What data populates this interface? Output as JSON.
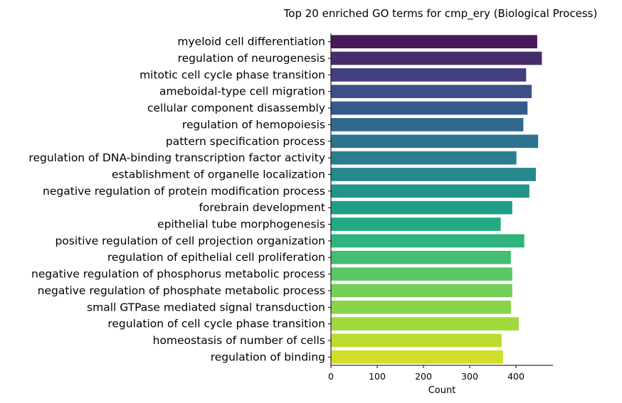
{
  "chart_data": {
    "type": "bar",
    "orientation": "horizontal",
    "title": "Top 20 enriched GO terms for cmp_ery (Biological Process)",
    "xlabel": "Count",
    "ylabel": "",
    "xlim": [
      0,
      480
    ],
    "xticks": [
      0,
      100,
      200,
      300,
      400
    ],
    "grid": false,
    "categories": [
      "myeloid cell differentiation",
      "regulation of neurogenesis",
      "mitotic cell cycle phase transition",
      "ameboidal-type cell migration",
      "cellular component disassembly",
      "regulation of hemopoiesis",
      "pattern specification process",
      "regulation of DNA-binding transcription factor activity",
      "establishment of organelle localization",
      "negative regulation of protein modification process",
      "forebrain development",
      "epithelial tube morphogenesis",
      "positive regulation of cell projection organization",
      "regulation of epithelial cell proliferation",
      "negative regulation of phosphorus metabolic process",
      "negative regulation of phosphate metabolic process",
      "small GTPase mediated signal transduction",
      "regulation of cell cycle phase transition",
      "homeostasis of number of cells",
      "regulation of binding"
    ],
    "values": [
      446,
      456,
      422,
      434,
      425,
      416,
      448,
      401,
      443,
      429,
      392,
      367,
      418,
      389,
      392,
      392,
      389,
      406,
      369,
      372
    ],
    "colors": [
      "#481A5A",
      "#472C6E",
      "#433E7E",
      "#3E4F88",
      "#375A8C",
      "#32688E",
      "#2E738E",
      "#2A7F8E",
      "#25898D",
      "#22948C",
      "#1F9F88",
      "#23AA82",
      "#2EB47C",
      "#44BE70",
      "#5BC665",
      "#73CE5A",
      "#89D449",
      "#A0D93C",
      "#BCDC2D",
      "#D0DE27"
    ]
  }
}
